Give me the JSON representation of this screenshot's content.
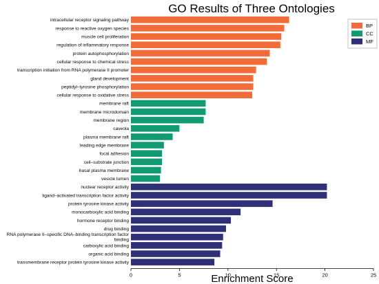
{
  "chart_data": {
    "type": "bar",
    "orientation": "horizontal",
    "title": "GO Results of Three Ontologies",
    "xlabel": "Enrichment Score",
    "ylabel": "",
    "xlim": [
      0,
      25
    ],
    "xticks": [
      0,
      5,
      10,
      15,
      20,
      25
    ],
    "grid": false,
    "legend_position": "top-right",
    "colors": {
      "BP": "#f26b3a",
      "CC": "#129b73",
      "MF": "#2f3078"
    },
    "series": [
      {
        "name": "BP",
        "categories": [
          "intracellular receptor signaling pathway",
          "response to reactive oxygen species",
          "muscle cell proliferation",
          "regulation of inflammatory response",
          "protein autophosphorylation",
          "cellular response to chemical stress",
          "transcription initiation from RNA polymerase II promoter",
          "gland development",
          "peptidyl–tyrosine phosphorylation",
          "cellular response to oxidative stress"
        ],
        "values": [
          16.3,
          15.8,
          15.5,
          15.4,
          14.3,
          14.0,
          12.9,
          12.6,
          12.6,
          12.5
        ]
      },
      {
        "name": "CC",
        "categories": [
          "membrane raft",
          "membrane microdomain",
          "membrane region",
          "caveola",
          "plasma membrane raft",
          "leading edge membrane",
          "focal adhesion",
          "cell–substrate junction",
          "basal plasma membrane",
          "vesicle lumen"
        ],
        "values": [
          7.7,
          7.7,
          7.5,
          5.0,
          4.3,
          3.4,
          3.2,
          3.2,
          3.1,
          3.0
        ]
      },
      {
        "name": "MF",
        "categories": [
          "nuclear receptor activity",
          "ligand–activated transcription factor activity",
          "protein tyrosine kinase activity",
          "monocarboxylic acid binding",
          "hormone receptor binding",
          "drug binding",
          "RNA polymerase II–specific DNA–binding transcription factor binding",
          "carboxylic acid binding",
          "organic acid binding",
          "transmembrane receptor protein tyrosine kinase activity"
        ],
        "values": [
          20.2,
          20.2,
          14.6,
          11.3,
          10.3,
          9.8,
          9.5,
          9.4,
          9.2,
          8.6
        ]
      }
    ]
  }
}
